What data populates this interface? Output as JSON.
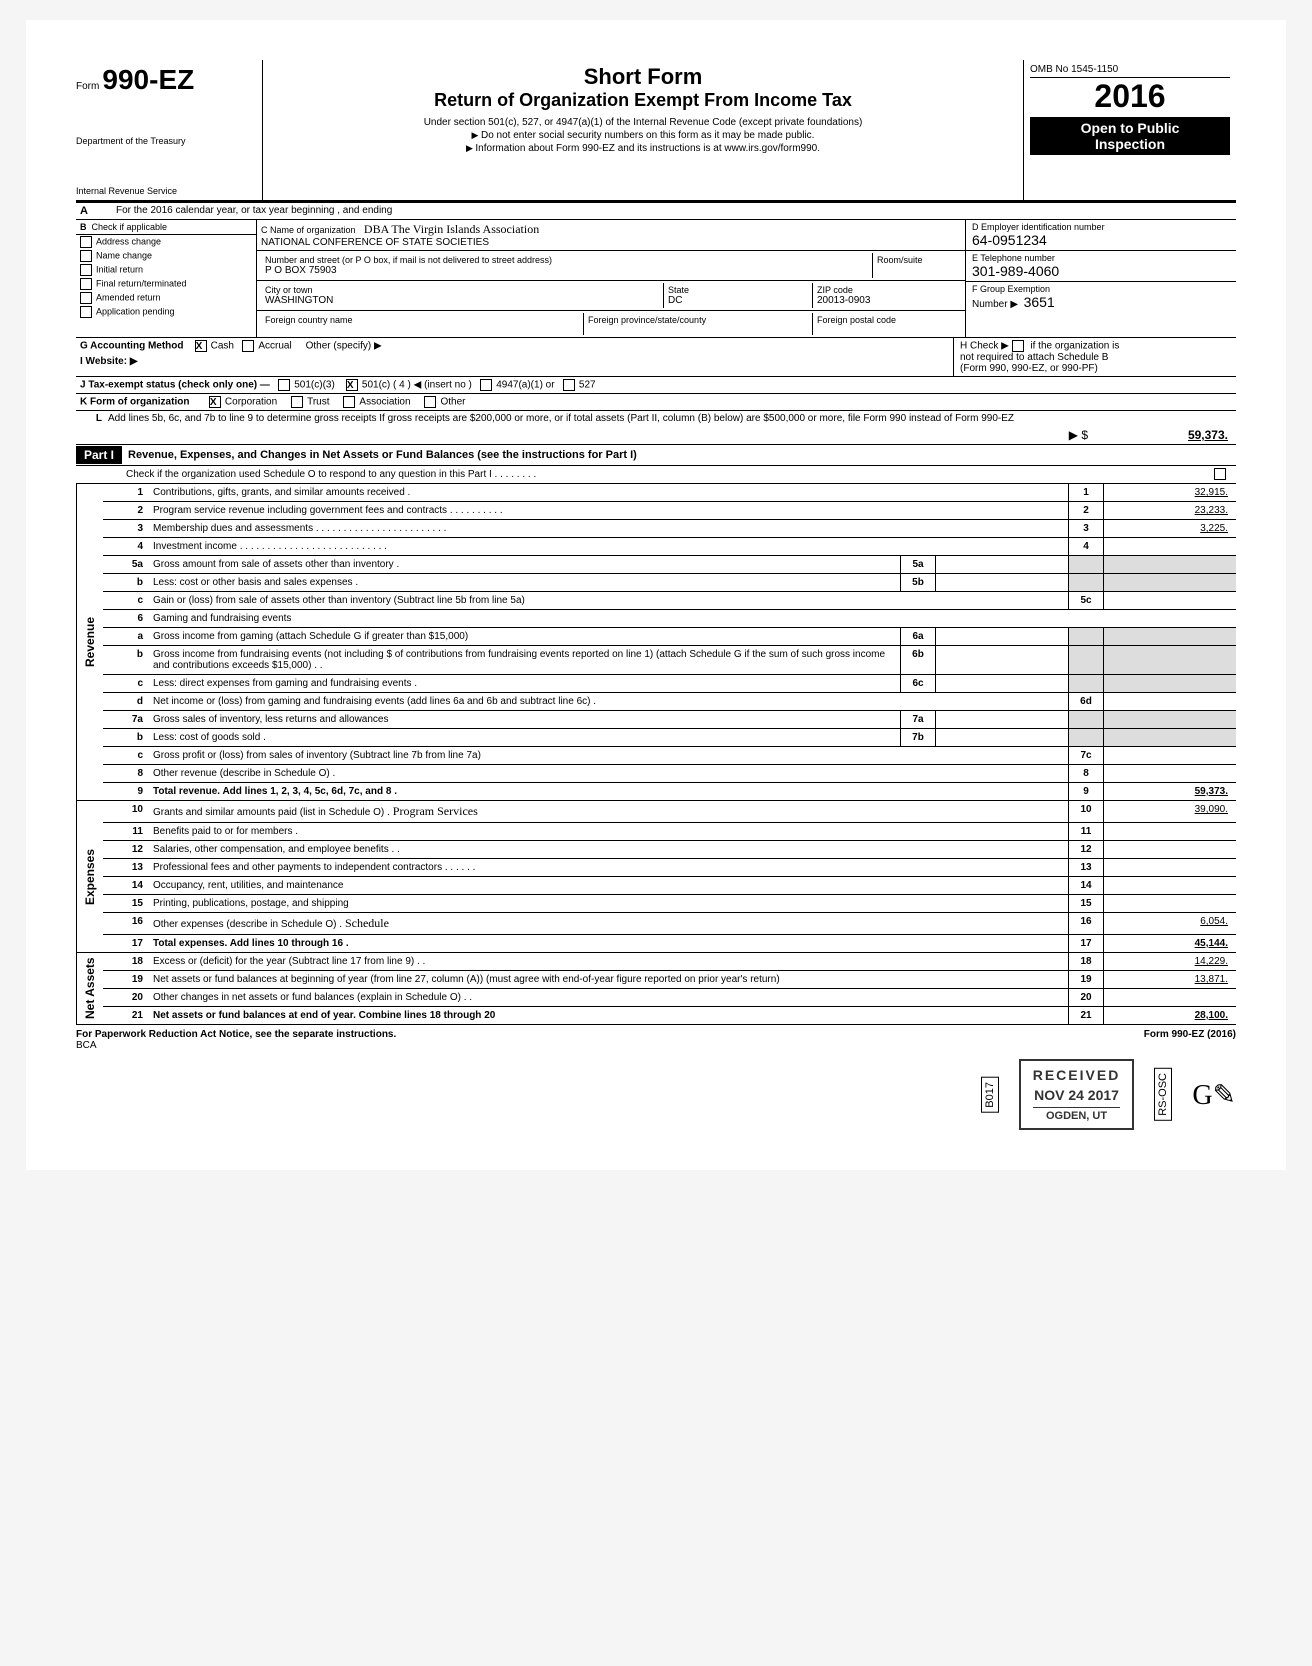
{
  "form": {
    "prefix": "Form",
    "number": "990-EZ",
    "dept1": "Department of the Treasury",
    "dept2": "Internal Revenue Service",
    "title1": "Short Form",
    "title2": "Return of Organization Exempt From Income Tax",
    "sub1": "Under section 501(c), 527, or 4947(a)(1) of the Internal Revenue Code (except private foundations)",
    "sub2": "Do not enter social security numbers on this form as it may be made public.",
    "sub3": "Information about Form 990-EZ and its instructions is at www.irs.gov/form990.",
    "omb": "OMB No 1545-1150",
    "year_prefix": "20",
    "year_suffix": "16",
    "open1": "Open to Public",
    "open2": "Inspection"
  },
  "line_a": "For the 2016 calendar year, or tax year beginning                               , and ending",
  "section_b": {
    "header": "Check if applicable",
    "opts": [
      "Address change",
      "Name change",
      "Initial return",
      "Final return/terminated",
      "Amended return",
      "Application pending"
    ]
  },
  "section_c": {
    "label_c": "C  Name of organization",
    "dba": "DBA  The Virgin Islands Association",
    "name": "NATIONAL CONFERENCE OF STATE SOCIETIES",
    "label_addr": "Number and street (or P O box, if mail is not delivered to street address)",
    "room": "Room/suite",
    "addr": "P O BOX 75903",
    "label_city": "City or town",
    "label_state": "State",
    "label_zip": "ZIP code",
    "city": "WASHINGTON",
    "state": "DC",
    "zip": "20013-0903",
    "label_fc": "Foreign country name",
    "label_fp": "Foreign province/state/county",
    "label_fpc": "Foreign postal code"
  },
  "section_right": {
    "d_label": "D  Employer identification number",
    "ein": "64-0951234",
    "e_label": "E  Telephone number",
    "phone": "301-989-4060",
    "f_label": "F  Group Exemption",
    "f_num_label": "Number ▶",
    "f_num": "3651"
  },
  "line_g": {
    "label": "G   Accounting Method",
    "cash": "Cash",
    "accrual": "Accrual",
    "other": "Other (specify) ▶"
  },
  "line_i": {
    "label": "I    Website: ▶"
  },
  "line_h": {
    "label": "H  Check ▶",
    "text1": "if the organization is",
    "text2": "not required to attach Schedule B",
    "text3": "(Form 990, 990-EZ, or 990-PF)"
  },
  "line_j": {
    "label": "J   Tax-exempt status (check only one) —",
    "c3": "501(c)(3)",
    "c": "501(c) ( 4",
    "ins": ")  ◀ (insert no )",
    "a": "4947(a)(1) or",
    "s": "527"
  },
  "line_k": {
    "label": "K  Form of organization",
    "corp": "Corporation",
    "trust": "Trust",
    "assoc": "Association",
    "other": "Other"
  },
  "line_l": {
    "label": "L",
    "text": "Add lines 5b, 6c, and 7b to line 9 to determine gross receipts  If gross receipts are $200,000 or more, or if total assets (Part II, column (B) below) are $500,000 or more, file Form 990 instead of Form 990-EZ"
  },
  "gross_label": "▶ $",
  "gross_val": "59,373.",
  "part1": {
    "tag": "Part I",
    "title": "Revenue, Expenses, and Changes in Net Assets or Fund Balances (see the instructions for Part I)",
    "check": "Check if the organization used Schedule O to respond to any question in this Part I  . . . . . . . ."
  },
  "side_labels": {
    "rev": "Revenue",
    "exp": "Expenses",
    "na": "Net Assets"
  },
  "lines": [
    {
      "n": "1",
      "d": "Contributions, gifts, grants, and similar amounts received .",
      "v": "32,915."
    },
    {
      "n": "2",
      "d": "Program service revenue including government fees and contracts . . . . . . . . . .",
      "v": "23,233."
    },
    {
      "n": "3",
      "d": "Membership dues and assessments . . . . . . . . . . . . . . . . . . . . . . . .",
      "v": "3,225."
    },
    {
      "n": "4",
      "d": "Investment income .    . . . . . . . . . . . . . . . . . . . . . . . . . .",
      "v": ""
    },
    {
      "n": "5a",
      "d": "Gross amount from sale of assets other than inventory .",
      "mid": "5a",
      "mv": ""
    },
    {
      "n": "b",
      "d": "Less: cost or other basis and sales expenses .",
      "mid": "5b",
      "mv": ""
    },
    {
      "n": "c",
      "d": "Gain or (loss) from sale of assets other than inventory (Subtract line 5b from line 5a)",
      "rn": "5c",
      "v": ""
    },
    {
      "n": "6",
      "d": "Gaming and fundraising events"
    },
    {
      "n": "a",
      "d": "Gross income from gaming (attach Schedule G if greater than $15,000)",
      "mid": "6a",
      "mv": ""
    },
    {
      "n": "b",
      "d": "Gross income from fundraising events (not including   $              of contributions from fundraising events reported on line 1) (attach Schedule G if the sum of such gross income and contributions exceeds $15,000) . .",
      "mid": "6b",
      "mv": ""
    },
    {
      "n": "c",
      "d": "Less: direct expenses from gaming and fundraising events .",
      "mid": "6c",
      "mv": ""
    },
    {
      "n": "d",
      "d": "Net income or (loss) from gaming and fundraising events (add lines 6a and 6b and subtract line 6c) .",
      "rn": "6d",
      "v": ""
    },
    {
      "n": "7a",
      "d": "Gross sales of inventory, less returns and allowances",
      "mid": "7a",
      "mv": ""
    },
    {
      "n": "b",
      "d": "Less: cost of goods sold .",
      "mid": "7b",
      "mv": ""
    },
    {
      "n": "c",
      "d": "Gross profit or (loss) from sales of inventory (Subtract line 7b from line 7a)",
      "rn": "7c",
      "v": ""
    },
    {
      "n": "8",
      "d": "Other revenue (describe in Schedule O) .",
      "rn": "8",
      "v": ""
    },
    {
      "n": "9",
      "d": "Total revenue. Add lines 1, 2, 3, 4, 5c, 6d, 7c, and 8 .",
      "rn": "9",
      "v": "59,373.",
      "bold": true
    }
  ],
  "exp_lines": [
    {
      "n": "10",
      "d": "Grants and similar amounts paid (list in Schedule O) .",
      "hand": "Program Services",
      "rn": "10",
      "v": "39,090."
    },
    {
      "n": "11",
      "d": "Benefits paid to or for members .",
      "rn": "11",
      "v": ""
    },
    {
      "n": "12",
      "d": "Salaries, other compensation, and employee benefits . .",
      "rn": "12",
      "v": ""
    },
    {
      "n": "13",
      "d": "Professional fees and other payments to independent contractors . . . . . .",
      "rn": "13",
      "v": ""
    },
    {
      "n": "14",
      "d": "Occupancy, rent, utilities, and maintenance",
      "rn": "14",
      "v": ""
    },
    {
      "n": "15",
      "d": "Printing, publications, postage, and shipping",
      "rn": "15",
      "v": ""
    },
    {
      "n": "16",
      "d": "Other expenses (describe in Schedule O) .",
      "hand": "Schedule",
      "rn": "16",
      "v": "6,054."
    },
    {
      "n": "17",
      "d": "Total expenses. Add lines 10 through 16 .",
      "rn": "17",
      "v": "45,144.",
      "bold": true
    }
  ],
  "na_lines": [
    {
      "n": "18",
      "d": "Excess or (deficit) for the year (Subtract line 17 from line 9) . .",
      "rn": "18",
      "v": "14,229."
    },
    {
      "n": "19",
      "d": "Net assets or fund balances at beginning of year (from line 27, column (A)) (must agree with end-of-year figure reported on prior year's return)",
      "rn": "19",
      "v": "13,871."
    },
    {
      "n": "20",
      "d": "Other changes in net assets or fund balances (explain in Schedule O) . .",
      "rn": "20",
      "v": ""
    },
    {
      "n": "21",
      "d": "Net assets or fund balances at end of year. Combine lines 18 through 20",
      "rn": "21",
      "v": "28,100.",
      "bold": true
    }
  ],
  "footer": {
    "left": "For Paperwork Reduction Act Notice, see the separate instructions.",
    "bca": "BCA",
    "right": "Form 990-EZ (2016)"
  },
  "stamp": {
    "rcv": "RECEIVED",
    "date": "NOV 24 2017",
    "loc": "OGDEN, UT",
    "v1": "B017",
    "v2": "RS-OSC"
  }
}
